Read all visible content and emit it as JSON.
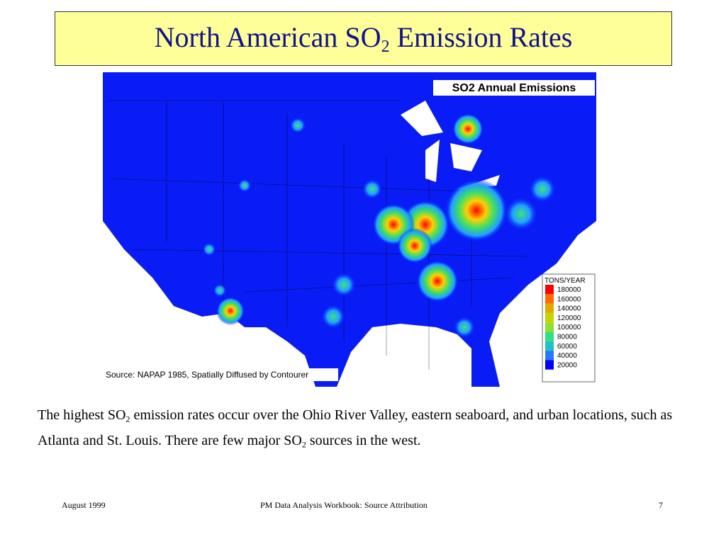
{
  "slide": {
    "title": [
      "North American SO",
      "2",
      " Emission Rates"
    ],
    "map": {
      "title": "SO2 Annual Emissions",
      "source": "Source: NAPAP 1985, Spatially Diffused by Contourer",
      "legend": {
        "title": "TONS/YEAR",
        "entries": [
          {
            "value": 180000,
            "color": "#ff0000"
          },
          {
            "value": 160000,
            "color": "#ff6a00"
          },
          {
            "value": 140000,
            "color": "#e0a800"
          },
          {
            "value": 120000,
            "color": "#c8d400"
          },
          {
            "value": 100000,
            "color": "#90e030"
          },
          {
            "value": 80000,
            "color": "#30e080"
          },
          {
            "value": 60000,
            "color": "#20c0c8"
          },
          {
            "value": 40000,
            "color": "#2878ff"
          },
          {
            "value": 20000,
            "color": "#0000ff"
          }
        ]
      }
    },
    "body": [
      "The highest SO",
      "2",
      " emission rates occur over the Ohio River Valley, eastern seaboard, and urban locations, such as Atlanta and St. Louis.  There are few major SO",
      "2",
      " sources in the west."
    ]
  },
  "footer": {
    "left": "August 1999",
    "center": "PM Data Analysis Workbook: Source Attribution",
    "right": "7"
  }
}
